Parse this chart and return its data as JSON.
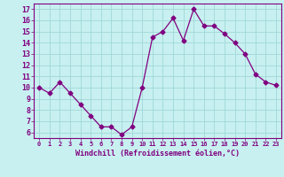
{
  "x": [
    0,
    1,
    2,
    3,
    4,
    5,
    6,
    7,
    8,
    9,
    10,
    11,
    12,
    13,
    14,
    15,
    16,
    17,
    18,
    19,
    20,
    21,
    22,
    23
  ],
  "y": [
    10,
    9.5,
    10.5,
    9.5,
    8.5,
    7.5,
    6.5,
    6.5,
    5.8,
    6.5,
    10,
    14.5,
    15.0,
    16.2,
    14.2,
    17.0,
    15.5,
    15.5,
    14.8,
    14.0,
    13.0,
    11.2,
    10.5,
    10.2
  ],
  "line_color": "#800080",
  "marker": "D",
  "marker_size": 2.5,
  "bg_color": "#c8f0f0",
  "grid_color": "#a0d8d8",
  "xlabel": "Windchill (Refroidissement éolien,°C)",
  "xlabel_color": "#800080",
  "tick_color": "#800080",
  "ylim": [
    5.5,
    17.5
  ],
  "xlim": [
    -0.5,
    23.5
  ],
  "yticks": [
    6,
    7,
    8,
    9,
    10,
    11,
    12,
    13,
    14,
    15,
    16,
    17
  ],
  "xticks": [
    0,
    1,
    2,
    3,
    4,
    5,
    6,
    7,
    8,
    9,
    10,
    11,
    12,
    13,
    14,
    15,
    16,
    17,
    18,
    19,
    20,
    21,
    22,
    23
  ]
}
